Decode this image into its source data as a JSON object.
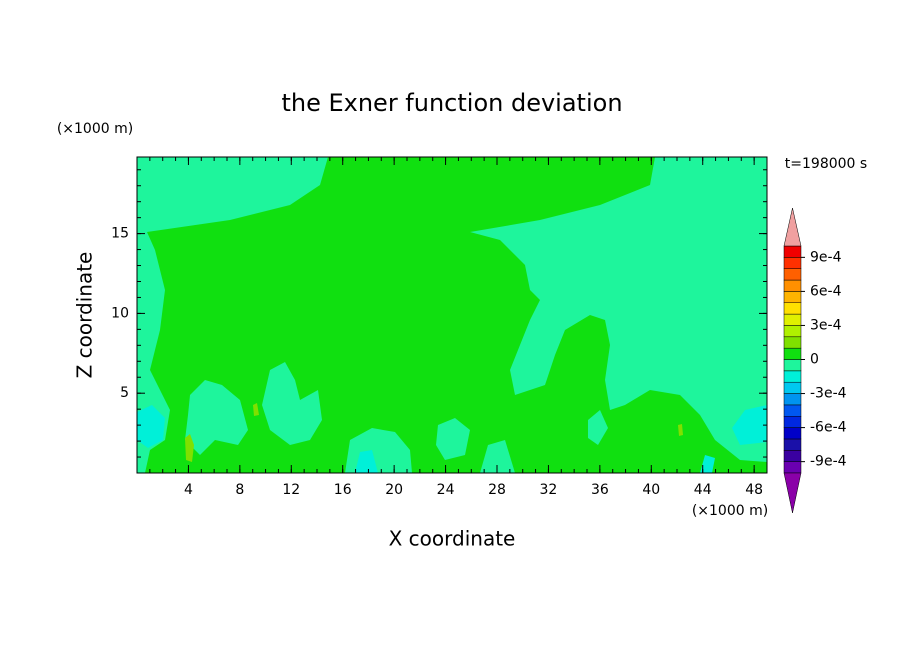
{
  "chart_data": {
    "type": "contour",
    "title": "the Exner function deviation",
    "x_label": "X coordinate",
    "y_label": "Z coordinate",
    "x_unit": "(×1000 m)",
    "y_unit": "(×1000 m)",
    "time_label": "t=198000 s",
    "xlim": [
      0,
      49
    ],
    "ylim": [
      0,
      19.8
    ],
    "xticks": [
      4,
      8,
      12,
      16,
      20,
      24,
      28,
      32,
      36,
      40,
      44,
      48
    ],
    "yticks": [
      5,
      10,
      15
    ],
    "levels": [
      -0.001,
      -0.0009,
      -0.0008,
      -0.0007,
      -0.0006,
      -0.0005,
      -0.0004,
      -0.0003,
      -0.0002,
      -0.0001,
      0,
      0.0001,
      0.0002,
      0.0003,
      0.0004,
      0.0005,
      0.0006,
      0.0007,
      0.0008,
      0.0009,
      0.001
    ],
    "colors": [
      "#6a00b0",
      "#3a00a0",
      "#1a10a8",
      "#0000c8",
      "#0028e0",
      "#0058f0",
      "#0094f0",
      "#00c8f0",
      "#00f0d8",
      "#1ef59c",
      "#10e010",
      "#80e000",
      "#b0f000",
      "#e0f000",
      "#ffe000",
      "#ffb400",
      "#ff9000",
      "#ff6000",
      "#ff3000",
      "#f00000"
    ],
    "under_color": "#8a00a8",
    "over_color": "#f0a0a0",
    "cbticks": [
      {
        "value": -0.0009,
        "label": "-9e-4"
      },
      {
        "value": -0.0006,
        "label": "-6e-4"
      },
      {
        "value": -0.0003,
        "label": "-3e-4"
      },
      0,
      {
        "value": 0.0003,
        "label": "3e-4"
      },
      {
        "value": 0.0006,
        "label": "6e-4"
      },
      {
        "value": 0.0009,
        "label": "9e-4"
      }
    ]
  }
}
